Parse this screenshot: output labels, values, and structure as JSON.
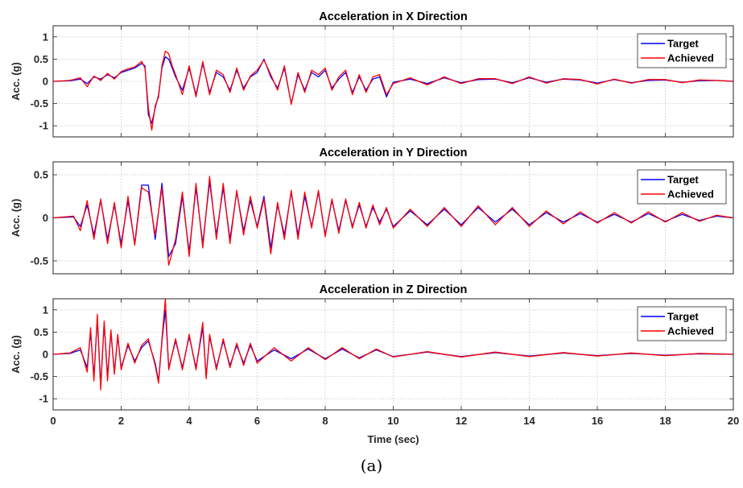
{
  "caption": "(a)",
  "chart_data": [
    {
      "type": "line",
      "title": "Acceleration in X Direction",
      "xlabel": "",
      "ylabel": "Acc. (g)",
      "xlim": [
        0,
        20
      ],
      "ylim": [
        -1.25,
        1.25
      ],
      "xticks": [
        0,
        2,
        4,
        6,
        8,
        10,
        12,
        14,
        16,
        18,
        20
      ],
      "xtick_labels": [],
      "yticks": [
        1,
        0.5,
        0,
        -0.5,
        -1
      ],
      "ytick_labels": [
        "1",
        "0.5",
        "0",
        "-0.5",
        "-1"
      ],
      "grid": true,
      "legend": "top-right",
      "colors": {
        "Target": "#0000ff",
        "Achieved": "#ff0000"
      },
      "series": [
        {
          "name": "Target",
          "x": [
            0,
            0.5,
            0.8,
            1.0,
            1.2,
            1.4,
            1.6,
            1.8,
            2.0,
            2.2,
            2.4,
            2.6,
            2.7,
            2.8,
            2.9,
            3.0,
            3.1,
            3.2,
            3.3,
            3.4,
            3.5,
            3.6,
            3.8,
            4.0,
            4.2,
            4.4,
            4.6,
            4.8,
            5.0,
            5.2,
            5.4,
            5.6,
            5.8,
            6.0,
            6.2,
            6.4,
            6.6,
            6.8,
            7.0,
            7.2,
            7.4,
            7.6,
            7.8,
            8.0,
            8.2,
            8.4,
            8.6,
            8.8,
            9.0,
            9.2,
            9.4,
            9.6,
            9.8,
            10.0,
            10.5,
            11.0,
            11.5,
            12.0,
            12.5,
            13.0,
            13.5,
            14.0,
            14.5,
            15.0,
            15.5,
            16.0,
            16.5,
            17.0,
            17.5,
            18.0,
            18.5,
            19.0,
            19.5,
            20.0
          ],
          "values": [
            0,
            0.01,
            0.05,
            -0.05,
            0.1,
            0.05,
            0.15,
            0.08,
            0.2,
            0.25,
            0.3,
            0.4,
            0.35,
            -0.75,
            -0.95,
            -0.6,
            -0.3,
            0.3,
            0.55,
            0.5,
            0.3,
            0.1,
            -0.2,
            0.3,
            -0.3,
            0.4,
            -0.25,
            0.2,
            0.1,
            -0.2,
            0.25,
            -0.15,
            0.1,
            0.2,
            0.5,
            0.1,
            -0.15,
            0.3,
            -0.5,
            0.15,
            -0.2,
            0.2,
            0.1,
            0.25,
            -0.15,
            0.05,
            0.2,
            -0.25,
            0.1,
            -0.2,
            0.05,
            0.1,
            -0.35,
            -0.02,
            0.05,
            -0.05,
            0.08,
            -0.03,
            0.04,
            0.05,
            -0.03,
            0.08,
            -0.02,
            0.05,
            0.03,
            -0.04,
            0.04,
            -0.03,
            0.02,
            0.03,
            -0.02,
            0.01,
            0.02,
            0
          ]
        },
        {
          "name": "Achieved",
          "x": [
            0,
            0.5,
            0.8,
            1.0,
            1.2,
            1.4,
            1.6,
            1.8,
            2.0,
            2.2,
            2.4,
            2.6,
            2.7,
            2.8,
            2.9,
            3.0,
            3.1,
            3.2,
            3.3,
            3.4,
            3.5,
            3.6,
            3.8,
            4.0,
            4.2,
            4.4,
            4.6,
            4.8,
            5.0,
            5.2,
            5.4,
            5.6,
            5.8,
            6.0,
            6.2,
            6.4,
            6.6,
            6.8,
            7.0,
            7.2,
            7.4,
            7.6,
            7.8,
            8.0,
            8.2,
            8.4,
            8.6,
            8.8,
            9.0,
            9.2,
            9.4,
            9.6,
            9.8,
            10.0,
            10.5,
            11.0,
            11.5,
            12.0,
            12.5,
            13.0,
            13.5,
            14.0,
            14.5,
            15.0,
            15.5,
            16.0,
            16.5,
            17.0,
            17.5,
            18.0,
            18.5,
            19.0,
            19.5,
            20.0
          ],
          "values": [
            0,
            0.02,
            0.08,
            -0.12,
            0.12,
            0.02,
            0.18,
            0.05,
            0.22,
            0.28,
            0.32,
            0.45,
            0.3,
            -0.6,
            -1.1,
            -0.55,
            -0.35,
            0.35,
            0.68,
            0.62,
            0.35,
            0.15,
            -0.3,
            0.35,
            -0.35,
            0.45,
            -0.3,
            0.25,
            0.15,
            -0.25,
            0.3,
            -0.2,
            0.12,
            0.25,
            0.48,
            0.15,
            -0.2,
            0.35,
            -0.52,
            0.2,
            -0.25,
            0.25,
            0.15,
            0.3,
            -0.2,
            0.1,
            0.25,
            -0.3,
            0.15,
            -0.25,
            0.1,
            0.15,
            -0.3,
            -0.05,
            0.08,
            -0.08,
            0.1,
            -0.05,
            0.06,
            0.06,
            -0.05,
            0.1,
            -0.04,
            0.06,
            0.04,
            -0.06,
            0.05,
            -0.04,
            0.04,
            0.04,
            -0.03,
            0.03,
            0.02,
            0
          ]
        }
      ]
    },
    {
      "type": "line",
      "title": "Acceleration in Y Direction",
      "xlabel": "",
      "ylabel": "Acc. (g)",
      "xlim": [
        0,
        20
      ],
      "ylim": [
        -0.65,
        0.65
      ],
      "xticks": [
        0,
        2,
        4,
        6,
        8,
        10,
        12,
        14,
        16,
        18,
        20
      ],
      "xtick_labels": [],
      "yticks": [
        0.5,
        0,
        -0.5
      ],
      "ytick_labels": [
        "0.5",
        "0",
        "-0.5"
      ],
      "grid": true,
      "legend": "top-right",
      "colors": {
        "Target": "#0000ff",
        "Achieved": "#ff0000"
      },
      "series": [
        {
          "name": "Target",
          "x": [
            0,
            0.6,
            0.8,
            1.0,
            1.2,
            1.4,
            1.6,
            1.8,
            2.0,
            2.2,
            2.4,
            2.6,
            2.8,
            3.0,
            3.2,
            3.4,
            3.6,
            3.8,
            4.0,
            4.2,
            4.4,
            4.6,
            4.8,
            5.0,
            5.2,
            5.4,
            5.6,
            5.8,
            6.0,
            6.2,
            6.4,
            6.6,
            6.8,
            7.0,
            7.2,
            7.4,
            7.6,
            7.8,
            8.0,
            8.2,
            8.4,
            8.6,
            8.8,
            9.0,
            9.2,
            9.4,
            9.6,
            9.8,
            10.0,
            10.5,
            11.0,
            11.5,
            12.0,
            12.5,
            13.0,
            13.5,
            14.0,
            14.5,
            15.0,
            15.5,
            16.0,
            16.5,
            17.0,
            17.5,
            18.0,
            18.5,
            19.0,
            19.5,
            20.0
          ],
          "values": [
            0,
            0.01,
            -0.1,
            0.15,
            -0.2,
            0.2,
            -0.25,
            0.15,
            -0.3,
            0.2,
            -0.3,
            0.38,
            0.38,
            -0.25,
            0.4,
            -0.45,
            -0.3,
            0.25,
            -0.4,
            0.35,
            -0.3,
            0.42,
            -0.2,
            0.35,
            -0.25,
            0.3,
            -0.15,
            0.2,
            -0.1,
            0.25,
            -0.35,
            0.15,
            -0.2,
            0.3,
            -0.2,
            0.25,
            -0.1,
            0.3,
            -0.2,
            0.2,
            -0.15,
            0.2,
            -0.1,
            0.15,
            -0.1,
            0.12,
            -0.05,
            0.1,
            -0.1,
            0.08,
            -0.08,
            0.1,
            -0.08,
            0.12,
            -0.05,
            0.1,
            -0.08,
            0.06,
            -0.05,
            0.05,
            -0.05,
            0.04,
            -0.05,
            0.05,
            -0.04,
            0.04,
            -0.03,
            0.02,
            0
          ]
        },
        {
          "name": "Achieved",
          "x": [
            0,
            0.6,
            0.8,
            1.0,
            1.2,
            1.4,
            1.6,
            1.8,
            2.0,
            2.2,
            2.4,
            2.6,
            2.8,
            3.0,
            3.2,
            3.4,
            3.6,
            3.8,
            4.0,
            4.2,
            4.4,
            4.6,
            4.8,
            5.0,
            5.2,
            5.4,
            5.6,
            5.8,
            6.0,
            6.2,
            6.4,
            6.6,
            6.8,
            7.0,
            7.2,
            7.4,
            7.6,
            7.8,
            8.0,
            8.2,
            8.4,
            8.6,
            8.8,
            9.0,
            9.2,
            9.4,
            9.6,
            9.8,
            10.0,
            10.5,
            11.0,
            11.5,
            12.0,
            12.5,
            13.0,
            13.5,
            14.0,
            14.5,
            15.0,
            15.5,
            16.0,
            16.5,
            17.0,
            17.5,
            18.0,
            18.5,
            19.0,
            19.5,
            20.0
          ],
          "values": [
            0,
            0.02,
            -0.15,
            0.2,
            -0.25,
            0.22,
            -0.3,
            0.18,
            -0.35,
            0.25,
            -0.32,
            0.35,
            0.3,
            -0.2,
            0.35,
            -0.55,
            -0.25,
            0.3,
            -0.45,
            0.4,
            -0.35,
            0.48,
            -0.25,
            0.4,
            -0.3,
            0.32,
            -0.2,
            0.25,
            -0.12,
            0.22,
            -0.42,
            0.18,
            -0.25,
            0.32,
            -0.25,
            0.3,
            -0.12,
            0.32,
            -0.22,
            0.22,
            -0.18,
            0.22,
            -0.12,
            0.18,
            -0.12,
            0.15,
            -0.08,
            0.12,
            -0.12,
            0.1,
            -0.1,
            0.12,
            -0.1,
            0.14,
            -0.08,
            0.12,
            -0.1,
            0.08,
            -0.07,
            0.07,
            -0.06,
            0.06,
            -0.06,
            0.07,
            -0.05,
            0.06,
            -0.04,
            0.03,
            0
          ]
        }
      ]
    },
    {
      "type": "line",
      "title": "Acceleration in Z Direction",
      "xlabel": "Time (sec)",
      "ylabel": "Acc. (g)",
      "xlim": [
        0,
        20
      ],
      "ylim": [
        -1.25,
        1.25
      ],
      "xticks": [
        0,
        2,
        4,
        6,
        8,
        10,
        12,
        14,
        16,
        18,
        20
      ],
      "xtick_labels": [
        "0",
        "2",
        "4",
        "6",
        "8",
        "10",
        "12",
        "14",
        "16",
        "18",
        "20"
      ],
      "yticks": [
        1,
        0.5,
        0,
        -0.5,
        -1
      ],
      "ytick_labels": [
        "1",
        "0.5",
        "0",
        "-0.5",
        "-1"
      ],
      "grid": true,
      "legend": "top-right",
      "colors": {
        "Target": "#0000ff",
        "Achieved": "#ff0000"
      },
      "series": [
        {
          "name": "Target",
          "x": [
            0,
            0.5,
            0.8,
            1.0,
            1.1,
            1.2,
            1.3,
            1.4,
            1.5,
            1.6,
            1.7,
            1.8,
            1.9,
            2.0,
            2.2,
            2.4,
            2.6,
            2.8,
            3.0,
            3.1,
            3.2,
            3.3,
            3.4,
            3.6,
            3.8,
            4.0,
            4.2,
            4.4,
            4.5,
            4.6,
            4.8,
            5.0,
            5.2,
            5.4,
            5.6,
            5.8,
            6.0,
            6.5,
            7.0,
            7.5,
            8.0,
            8.5,
            9.0,
            9.5,
            10.0,
            11.0,
            12.0,
            13.0,
            14.0,
            15.0,
            16.0,
            17.0,
            18.0,
            19.0,
            20.0
          ],
          "values": [
            0,
            0.02,
            0.1,
            -0.3,
            0.5,
            -0.5,
            0.8,
            -0.7,
            0.7,
            -0.5,
            0.5,
            -0.4,
            0.4,
            -0.3,
            0.2,
            -0.15,
            0.15,
            0.3,
            -0.2,
            -0.6,
            0.3,
            1.0,
            -0.3,
            0.3,
            -0.3,
            0.4,
            -0.3,
            0.6,
            -0.5,
            0.4,
            -0.3,
            0.3,
            -0.25,
            0.2,
            -0.2,
            0.2,
            -0.15,
            0.1,
            -0.1,
            0.12,
            -0.1,
            0.12,
            -0.08,
            0.1,
            -0.05,
            0.05,
            -0.05,
            0.04,
            -0.04,
            0.03,
            -0.03,
            0.02,
            -0.02,
            0.01,
            0
          ]
        },
        {
          "name": "Achieved",
          "x": [
            0,
            0.5,
            0.8,
            1.0,
            1.1,
            1.2,
            1.3,
            1.4,
            1.5,
            1.6,
            1.7,
            1.8,
            1.9,
            2.0,
            2.2,
            2.4,
            2.6,
            2.8,
            3.0,
            3.1,
            3.2,
            3.3,
            3.4,
            3.6,
            3.8,
            4.0,
            4.2,
            4.4,
            4.5,
            4.6,
            4.8,
            5.0,
            5.2,
            5.4,
            5.6,
            5.8,
            6.0,
            6.5,
            7.0,
            7.5,
            8.0,
            8.5,
            9.0,
            9.5,
            10.0,
            11.0,
            12.0,
            13.0,
            14.0,
            15.0,
            16.0,
            17.0,
            18.0,
            19.0,
            20.0
          ],
          "values": [
            0,
            0.03,
            0.15,
            -0.4,
            0.6,
            -0.6,
            0.9,
            -0.8,
            0.75,
            -0.6,
            0.55,
            -0.45,
            0.45,
            -0.35,
            0.25,
            -0.2,
            0.2,
            0.35,
            -0.25,
            -0.65,
            0.35,
            1.25,
            -0.35,
            0.35,
            -0.35,
            0.45,
            -0.35,
            0.72,
            -0.55,
            0.45,
            -0.35,
            0.35,
            -0.3,
            0.25,
            -0.25,
            0.25,
            -0.2,
            0.15,
            -0.15,
            0.15,
            -0.12,
            0.15,
            -0.1,
            0.12,
            -0.06,
            0.06,
            -0.06,
            0.05,
            -0.05,
            0.04,
            -0.04,
            0.03,
            -0.03,
            0.02,
            0
          ]
        }
      ]
    }
  ]
}
